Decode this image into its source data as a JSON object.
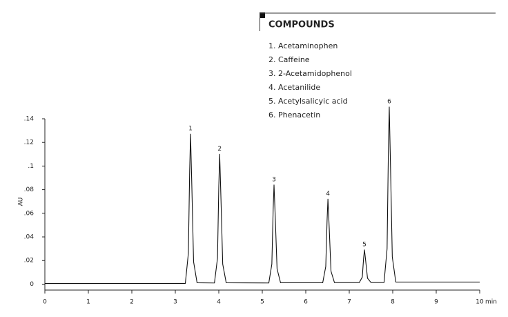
{
  "chart_data": {
    "type": "line",
    "y_label": "AU",
    "x_unit": "min",
    "legend_title": "COMPOUNDS",
    "legend_items": [
      "1. Acetaminophen",
      "2. Caffeine",
      "3. 2-Acetamidophenol",
      "4. Acetanilide",
      "5. Acetylsalicyic acid",
      "6. Phenacetin"
    ],
    "xlim": [
      0,
      10
    ],
    "xticks": [
      0,
      1,
      2,
      3,
      4,
      5,
      6,
      7,
      8,
      9,
      10
    ],
    "ylim": [
      -0.005,
      0.14
    ],
    "yticks": [
      0,
      {
        "value": 0.02,
        "label": ".02"
      },
      {
        "value": 0.04,
        "label": ".04"
      },
      {
        "value": 0.06,
        "label": ".06"
      },
      {
        "value": 0.08,
        "label": ".08"
      },
      {
        "value": 0.1,
        "label": ".1"
      },
      {
        "value": 0.12,
        "label": ".12"
      },
      {
        "value": 0.14,
        "label": ".14"
      }
    ],
    "color": "#111111",
    "x": [
      0,
      3.23,
      3.3,
      3.33,
      3.35,
      3.38,
      3.42,
      3.5,
      3.9,
      3.97,
      4.0,
      4.02,
      4.05,
      4.09,
      4.17,
      5.15,
      5.22,
      5.25,
      5.27,
      5.3,
      5.34,
      5.42,
      6.39,
      6.46,
      6.49,
      6.51,
      6.54,
      6.58,
      6.66,
      7.23,
      7.3,
      7.33,
      7.35,
      7.38,
      7.42,
      7.5,
      7.8,
      7.87,
      7.9,
      7.92,
      7.95,
      7.99,
      8.07,
      10
    ],
    "values": [
      0.0005,
      0.0006,
      0.026,
      0.096,
      0.127,
      0.083,
      0.019,
      0.0012,
      0.001,
      0.022,
      0.083,
      0.11,
      0.072,
      0.017,
      0.0012,
      0.001,
      0.017,
      0.063,
      0.084,
      0.055,
      0.013,
      0.0012,
      0.0012,
      0.015,
      0.054,
      0.072,
      0.047,
      0.011,
      0.0013,
      0.0013,
      0.006,
      0.022,
      0.029,
      0.019,
      0.005,
      0.0014,
      0.0014,
      0.03,
      0.113,
      0.15,
      0.098,
      0.023,
      0.0018,
      0.0018
    ],
    "peak_labels": [
      {
        "text": "1",
        "x": 3.35,
        "y": 0.127
      },
      {
        "text": "2",
        "x": 4.02,
        "y": 0.11
      },
      {
        "text": "3",
        "x": 5.27,
        "y": 0.084
      },
      {
        "text": "4",
        "x": 6.51,
        "y": 0.072
      },
      {
        "text": "5",
        "x": 7.35,
        "y": 0.029
      },
      {
        "text": "6",
        "x": 7.92,
        "y": 0.15
      }
    ]
  }
}
